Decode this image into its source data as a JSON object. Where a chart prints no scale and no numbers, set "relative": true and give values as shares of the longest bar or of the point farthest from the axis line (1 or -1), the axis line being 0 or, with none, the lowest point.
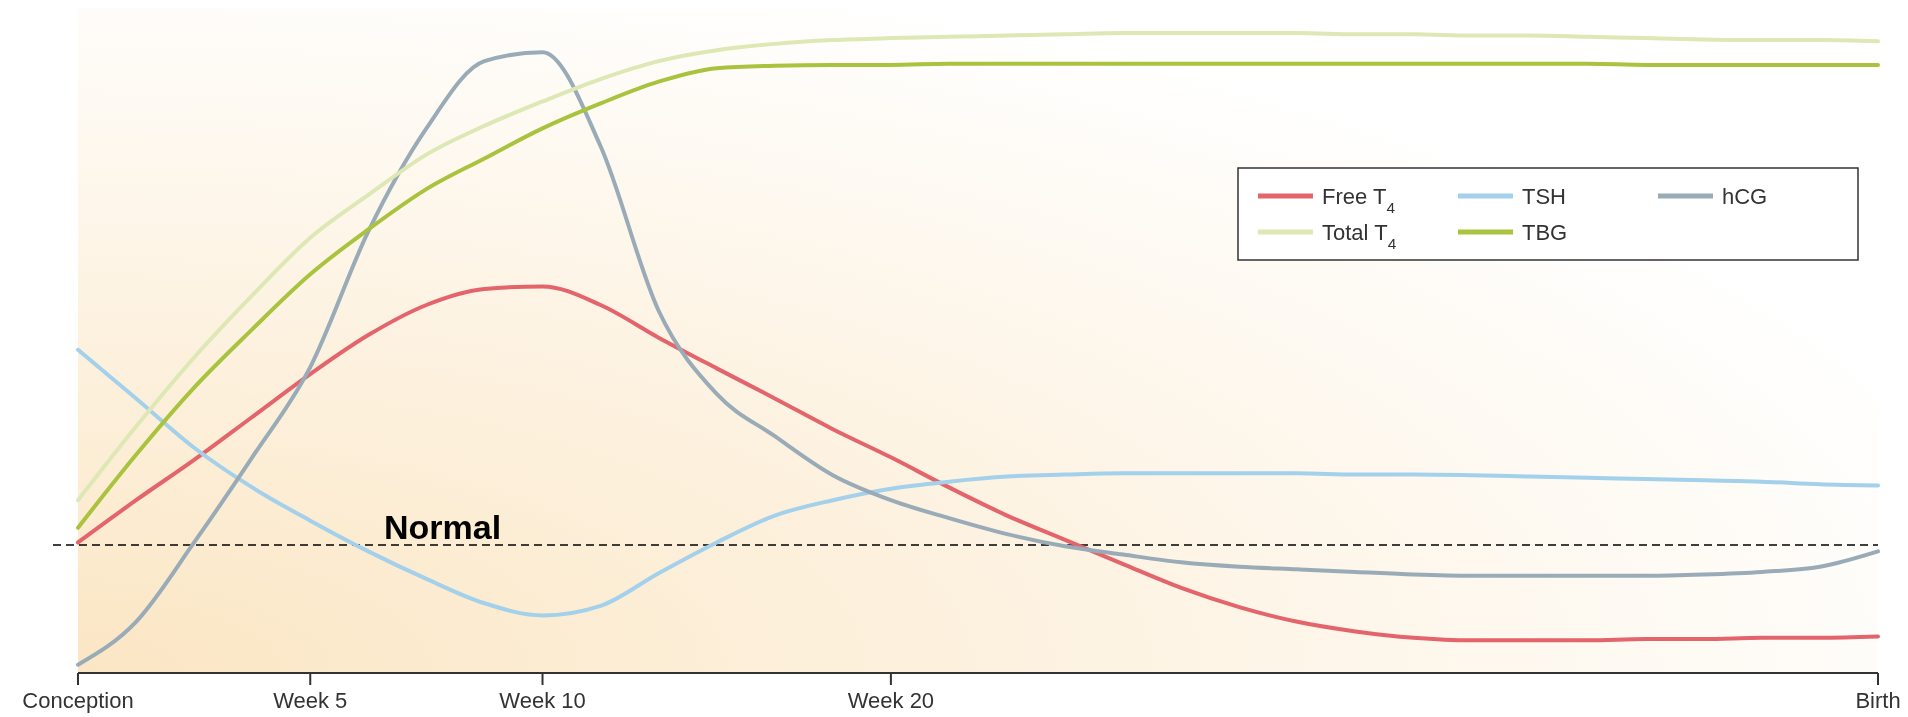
{
  "chart_data": {
    "type": "line",
    "relative": true,
    "categories": [
      "Conception",
      null,
      null,
      null,
      "Week 5",
      null,
      null,
      null,
      "Week 10",
      null,
      null,
      null,
      null,
      null,
      "Week 20",
      null,
      null,
      null,
      null,
      null,
      null,
      null,
      null,
      null,
      null,
      null,
      null,
      null,
      null,
      null,
      null,
      "Birth"
    ],
    "series": [
      {
        "name": "Free T$_{4}$",
        "color": "#e4646c",
        "values": [
          0.204,
          0.27,
          0.333,
          0.4,
          0.467,
          0.528,
          0.575,
          0.6,
          0.604,
          0.575,
          0.524,
          0.476,
          0.429,
          0.381,
          0.337,
          0.29,
          0.246,
          0.208,
          0.17,
          0.133,
          0.103,
          0.08,
          0.065,
          0.055,
          0.051,
          0.051,
          0.051,
          0.053,
          0.053,
          0.055,
          0.055,
          0.057
        ]
      },
      {
        "name": "TSH",
        "color": "#a3d0ea",
        "values": [
          0.505,
          0.429,
          0.352,
          0.29,
          0.238,
          0.19,
          0.147,
          0.109,
          0.09,
          0.105,
          0.156,
          0.204,
          0.246,
          0.27,
          0.288,
          0.299,
          0.307,
          0.31,
          0.312,
          0.312,
          0.312,
          0.312,
          0.31,
          0.31,
          0.309,
          0.307,
          0.305,
          0.303,
          0.301,
          0.299,
          0.295,
          0.293
        ]
      },
      {
        "name": "hCG",
        "color": "#9aabb8",
        "values": [
          0.013,
          0.08,
          0.204,
          0.337,
          0.478,
          0.69,
          0.851,
          0.956,
          0.97,
          0.823,
          0.566,
          0.436,
          0.37,
          0.309,
          0.27,
          0.242,
          0.217,
          0.198,
          0.185,
          0.173,
          0.166,
          0.162,
          0.158,
          0.154,
          0.152,
          0.152,
          0.152,
          0.152,
          0.154,
          0.158,
          0.166,
          0.19
        ]
      },
      {
        "name": "Total T$_{4}$",
        "color": "#dde8b4",
        "values": [
          0.27,
          0.385,
          0.493,
          0.59,
          0.68,
          0.747,
          0.81,
          0.855,
          0.893,
          0.928,
          0.956,
          0.973,
          0.983,
          0.989,
          0.992,
          0.994,
          0.996,
          0.998,
          1.0,
          1.0,
          1.0,
          1.0,
          0.998,
          0.998,
          0.996,
          0.996,
          0.994,
          0.992,
          0.99,
          0.989,
          0.989,
          0.987
        ]
      },
      {
        "name": "TBG",
        "color": "#a9c33e",
        "values": [
          0.227,
          0.341,
          0.446,
          0.537,
          0.623,
          0.693,
          0.756,
          0.804,
          0.851,
          0.89,
          0.924,
          0.945,
          0.949,
          0.95,
          0.95,
          0.952,
          0.952,
          0.952,
          0.952,
          0.952,
          0.952,
          0.952,
          0.952,
          0.952,
          0.952,
          0.952,
          0.952,
          0.95,
          0.95,
          0.95,
          0.95,
          0.95
        ]
      }
    ],
    "ref_lines": [
      {
        "axis": "y",
        "value": 0.2,
        "label": "Normal",
        "line_style": "dashed",
        "color": "#000000"
      }
    ],
    "legend": "top right",
    "grid": false,
    "marker": "none"
  }
}
